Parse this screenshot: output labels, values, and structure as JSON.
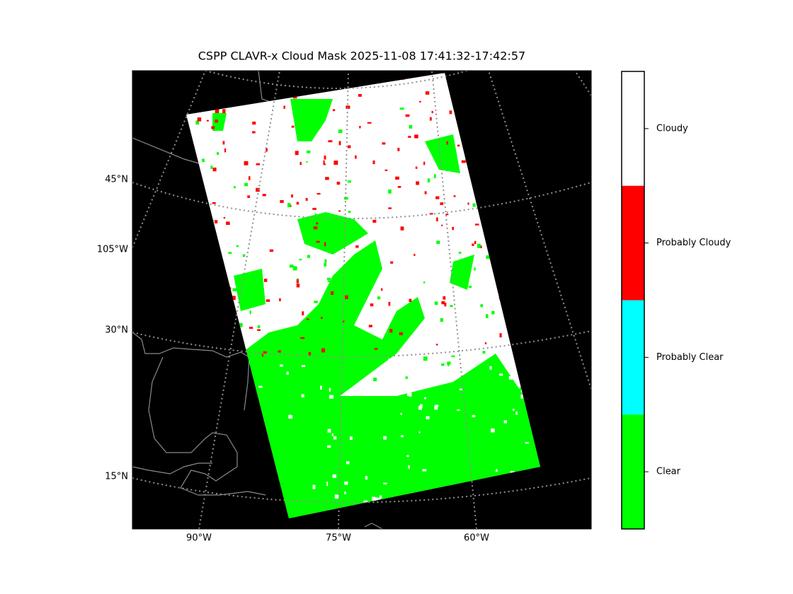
{
  "title": "CSPP CLAVR-x Cloud Mask 2025-11-08 17:41:32-17:42:57",
  "map": {
    "lat_labels": [
      "45°N",
      "105°W",
      "30°N",
      "15°N"
    ],
    "lon_labels": [
      "90°W",
      "75°W",
      "60°W"
    ]
  },
  "colorbar": {
    "categories": [
      "Cloudy",
      "Probably Cloudy",
      "Probably Clear",
      "Clear"
    ],
    "colors": [
      "#ffffff",
      "#ff0000",
      "#00ffff",
      "#00ff00"
    ]
  }
}
